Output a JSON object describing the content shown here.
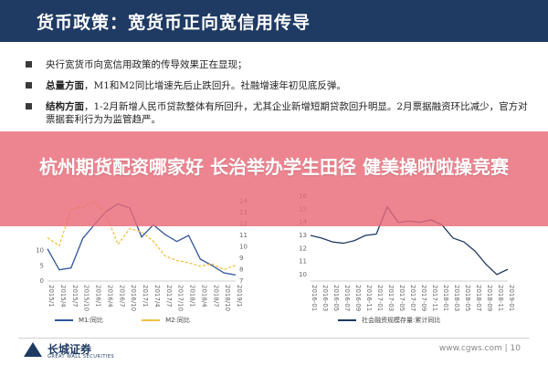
{
  "header": {
    "title": "货币政策：宽货币正向宽信用传导"
  },
  "bullets": [
    {
      "key": "",
      "text": "央行宽货币向宽信用政策的传导效果正在显现；"
    },
    {
      "key": "总量方面",
      "text": "，M1和M2同比增速先后止跌回升。社融增速年初见底反弹。"
    },
    {
      "key": "结构方面",
      "text": "，1-2月新增人民币贷款整体有所回升，尤其企业新增短期贷款回升明显。2月票据融资环比减少，官方对票据套利行为为监管趋严。"
    }
  ],
  "banner": {
    "text": "杭州期货配资哪家好 长治举办学生田径 健美操啦啦操竞赛"
  },
  "colors": {
    "header": "#1f3a63",
    "m1": "#2f5597",
    "m2": "#f0c040",
    "social": "#1f3a63"
  },
  "chart_data": [
    {
      "type": "line",
      "title": "",
      "ylim_left": [
        0,
        30
      ],
      "yticks_left": [
        "0",
        "5",
        "10"
      ],
      "ylim_right": [
        7,
        15
      ],
      "yticks_right": [
        "14",
        "13",
        "12",
        "11",
        "10",
        "9",
        "8",
        "7"
      ],
      "x": [
        "2015/1",
        "2015/4",
        "2015/7",
        "2015/10",
        "2016/1",
        "2016/4",
        "2016/7",
        "2016/10",
        "2017/1",
        "2017/4",
        "2017/7",
        "2017/10",
        "2018/1",
        "2018/4",
        "2018/7",
        "2018/10",
        "2019/1"
      ],
      "series": [
        {
          "name": "M1:同比",
          "values": [
            10.6,
            3.7,
            4.3,
            14.0,
            18.6,
            22.9,
            25.4,
            24.0,
            14.5,
            18.5,
            15.3,
            13.0,
            15.0,
            7.2,
            5.1,
            2.7,
            2.0
          ]
        },
        {
          "name": "M2:同比",
          "values": [
            10.8,
            10.1,
            13.3,
            13.5,
            14.0,
            12.8,
            10.2,
            11.6,
            11.3,
            10.5,
            9.2,
            8.8,
            8.6,
            8.3,
            8.5,
            8.0,
            8.4
          ]
        }
      ]
    },
    {
      "type": "line",
      "title": "",
      "yticks": [
        "16",
        "15",
        "14",
        "13",
        "12",
        "11",
        "10"
      ],
      "ylim": [
        9.5,
        16.5
      ],
      "x": [
        "2016-01",
        "2016-03",
        "2016-05",
        "2016-07",
        "2016-09",
        "2016-11",
        "2017-01",
        "2017-03",
        "2017-05",
        "2017-07",
        "2017-09",
        "2017-11",
        "2018-01",
        "2018-03",
        "2018-05",
        "2018-07",
        "2018-09",
        "2018-11",
        "2019-01"
      ],
      "series": [
        {
          "name": "社会融资规模存量:累计同比",
          "values": [
            13.0,
            12.8,
            12.5,
            12.4,
            12.6,
            13.0,
            13.1,
            15.2,
            14.0,
            14.1,
            14.0,
            14.2,
            13.8,
            12.8,
            12.5,
            11.8,
            10.8,
            10.0,
            10.4
          ]
        }
      ]
    }
  ],
  "footer": {
    "logo": "长城证券",
    "logo_sub": "GREAT WALL SECURITIES",
    "site": "www.cgws.com",
    "page": "10"
  }
}
